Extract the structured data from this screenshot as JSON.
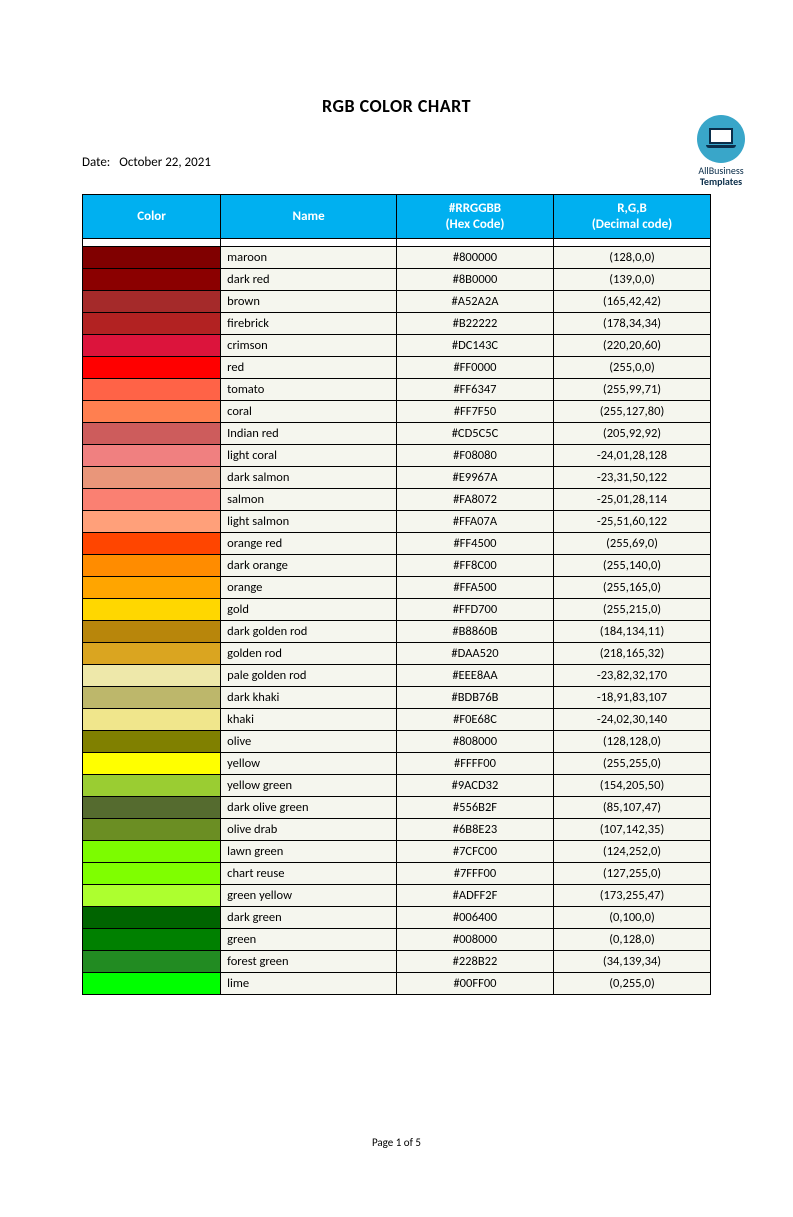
{
  "logo": {
    "line1": "AllBusiness",
    "line2": "Templates"
  },
  "title": "RGB COLOR CHART",
  "date_label": "Date:",
  "date_value": "October 22, 2021",
  "headers": {
    "color": "Color",
    "name": "Name",
    "hex_l1": "#RRGGBB",
    "hex_l2": "(Hex Code)",
    "dec_l1": "R,G,B",
    "dec_l2": "(Decimal code)"
  },
  "header_bg": "#00b0f0",
  "row_bg": "#f5f6ee",
  "border_color": "#000000",
  "rows": [
    {
      "swatch": "#800000",
      "name": "maroon",
      "hex": "#800000",
      "dec": "(128,0,0)"
    },
    {
      "swatch": "#8B0000",
      "name": "dark red",
      "hex": "#8B0000",
      "dec": "(139,0,0)"
    },
    {
      "swatch": "#A52A2A",
      "name": "brown",
      "hex": "#A52A2A",
      "dec": "(165,42,42)"
    },
    {
      "swatch": "#B22222",
      "name": "firebrick",
      "hex": "#B22222",
      "dec": "(178,34,34)"
    },
    {
      "swatch": "#DC143C",
      "name": "crimson",
      "hex": "#DC143C",
      "dec": "(220,20,60)"
    },
    {
      "swatch": "#FF0000",
      "name": "red",
      "hex": "#FF0000",
      "dec": "(255,0,0)"
    },
    {
      "swatch": "#FF6347",
      "name": "tomato",
      "hex": "#FF6347",
      "dec": "(255,99,71)"
    },
    {
      "swatch": "#FF7F50",
      "name": "coral",
      "hex": "#FF7F50",
      "dec": "(255,127,80)"
    },
    {
      "swatch": "#CD5C5C",
      "name": "Indian red",
      "hex": "#CD5C5C",
      "dec": "(205,92,92)"
    },
    {
      "swatch": "#F08080",
      "name": "light coral",
      "hex": "#F08080",
      "dec": "-24,01,28,128"
    },
    {
      "swatch": "#E9967A",
      "name": "dark salmon",
      "hex": "#E9967A",
      "dec": "-23,31,50,122"
    },
    {
      "swatch": "#FA8072",
      "name": "salmon",
      "hex": "#FA8072",
      "dec": "-25,01,28,114"
    },
    {
      "swatch": "#FFA07A",
      "name": "light salmon",
      "hex": "#FFA07A",
      "dec": "-25,51,60,122"
    },
    {
      "swatch": "#FF4500",
      "name": "orange red",
      "hex": "#FF4500",
      "dec": "(255,69,0)"
    },
    {
      "swatch": "#FF8C00",
      "name": "dark orange",
      "hex": "#FF8C00",
      "dec": "(255,140,0)"
    },
    {
      "swatch": "#FFA500",
      "name": "orange",
      "hex": "#FFA500",
      "dec": "(255,165,0)"
    },
    {
      "swatch": "#FFD700",
      "name": "gold",
      "hex": "#FFD700",
      "dec": "(255,215,0)"
    },
    {
      "swatch": "#B8860B",
      "name": "dark golden rod",
      "hex": "#B8860B",
      "dec": "(184,134,11)"
    },
    {
      "swatch": "#DAA520",
      "name": "golden rod",
      "hex": "#DAA520",
      "dec": "(218,165,32)"
    },
    {
      "swatch": "#EEE8AA",
      "name": "pale golden rod",
      "hex": "#EEE8AA",
      "dec": "-23,82,32,170"
    },
    {
      "swatch": "#BDB76B",
      "name": "dark khaki",
      "hex": "#BDB76B",
      "dec": "-18,91,83,107"
    },
    {
      "swatch": "#F0E68C",
      "name": "khaki",
      "hex": "#F0E68C",
      "dec": "-24,02,30,140"
    },
    {
      "swatch": "#808000",
      "name": "olive",
      "hex": "#808000",
      "dec": "(128,128,0)"
    },
    {
      "swatch": "#FFFF00",
      "name": "yellow",
      "hex": "#FFFF00",
      "dec": "(255,255,0)"
    },
    {
      "swatch": "#9ACD32",
      "name": "yellow green",
      "hex": "#9ACD32",
      "dec": "(154,205,50)"
    },
    {
      "swatch": "#556B2F",
      "name": "dark olive green",
      "hex": "#556B2F",
      "dec": "(85,107,47)"
    },
    {
      "swatch": "#6B8E23",
      "name": "olive drab",
      "hex": "#6B8E23",
      "dec": "(107,142,35)"
    },
    {
      "swatch": "#7CFC00",
      "name": "lawn green",
      "hex": "#7CFC00",
      "dec": "(124,252,0)"
    },
    {
      "swatch": "#7FFF00",
      "name": "chart reuse",
      "hex": "#7FFF00",
      "dec": "(127,255,0)"
    },
    {
      "swatch": "#ADFF2F",
      "name": "green yellow",
      "hex": "#ADFF2F",
      "dec": "(173,255,47)"
    },
    {
      "swatch": "#006400",
      "name": "dark green",
      "hex": "#006400",
      "dec": "(0,100,0)"
    },
    {
      "swatch": "#008000",
      "name": "green",
      "hex": "#008000",
      "dec": "(0,128,0)"
    },
    {
      "swatch": "#228B22",
      "name": "forest green",
      "hex": "#228B22",
      "dec": "(34,139,34)"
    },
    {
      "swatch": "#00FF00",
      "name": "lime",
      "hex": "#00FF00",
      "dec": "(0,255,0)"
    }
  ],
  "footer": "Page 1 of 5"
}
